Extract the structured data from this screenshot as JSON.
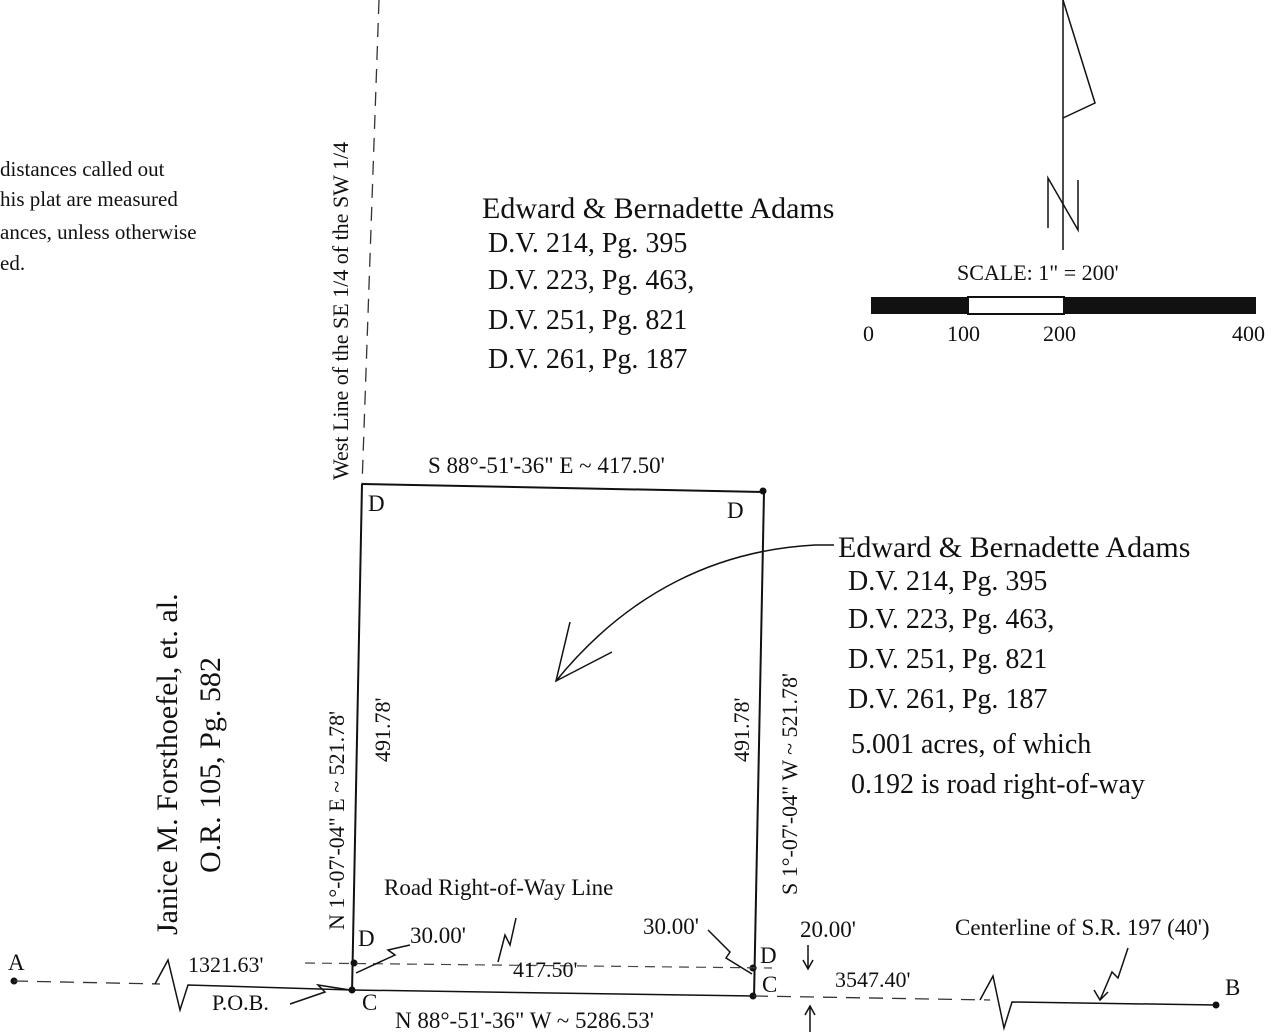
{
  "note": {
    "line1": "distances called out",
    "line2": "his plat are measured",
    "line3": "ances, unless otherwise",
    "line4": "ed."
  },
  "west_line_label": "West Line of the SE 1/4 of the SW 1/4",
  "north_owner": {
    "name": "Edward & Bernadette Adams",
    "refs": [
      "D.V. 214, Pg. 395",
      "D.V. 223, Pg. 463,",
      "D.V. 251, Pg. 821",
      "D.V. 261, Pg. 187"
    ]
  },
  "north_arrow": {
    "letter": "N"
  },
  "scale": {
    "label": "SCALE: 1\" = 200'",
    "ticks": [
      "0",
      "100",
      "200",
      "400"
    ]
  },
  "parcel": {
    "name": "Edward & Bernadette Adams",
    "refs": [
      "D.V. 214, Pg. 395",
      "D.V. 223, Pg. 463,",
      "D.V. 251, Pg. 821",
      "D.V. 261, Pg. 187"
    ],
    "area_line1": "5.001 acres, of which",
    "area_line2": "0.192 is road right-of-way"
  },
  "west_owner": {
    "name": "Janice M. Forsthoefel, et. al.",
    "ref": "O.R. 105, Pg. 582"
  },
  "bearings": {
    "north": "S 88°-51'-36\" E ~ 417.50'",
    "west": "N 1°-07'-04\" E ~ 521.78'",
    "west_inner": "491.78'",
    "east": "S 1°-07'-04\" W ~ 521.78'",
    "east_inner": "491.78'",
    "south_row": "417.50'",
    "centerline": "N 88°-51'-36\" W ~ 5286.53'"
  },
  "corners": {
    "d": "D",
    "c": "C"
  },
  "labels": {
    "road_row_line": "Road Right-of-Way Line",
    "row_width_west": "30.00'",
    "row_width_east": "30.00'",
    "half_width": "20.00'",
    "dist_west": "1321.63'",
    "dist_east": "3547.40'",
    "pob": "P.O.B.",
    "centerline_label": "Centerline of S.R. 197 (40')",
    "point_a": "A",
    "point_b": "B"
  }
}
